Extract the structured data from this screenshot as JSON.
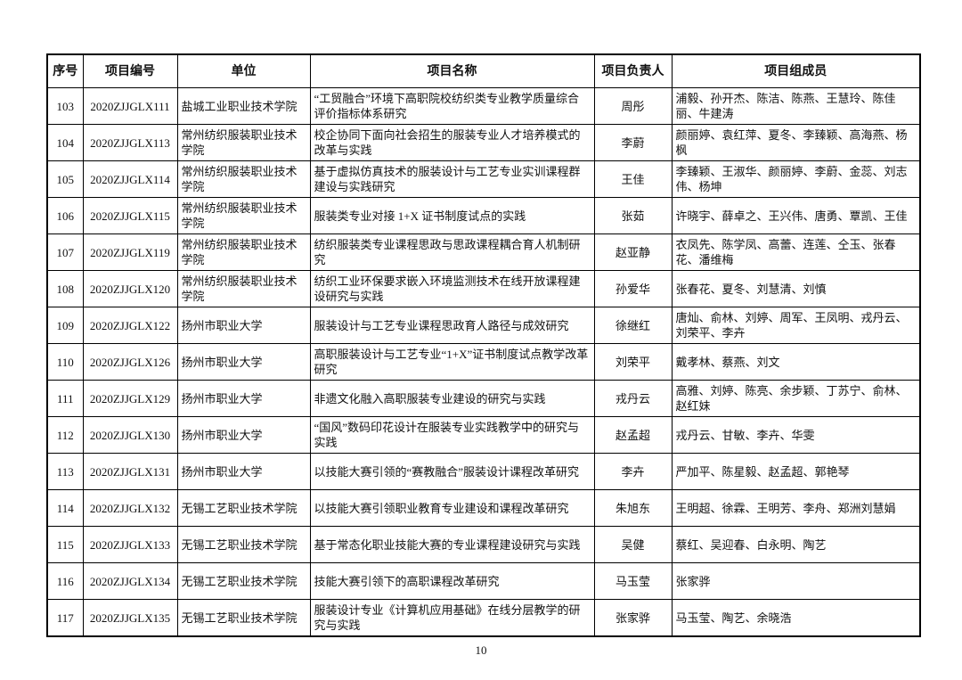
{
  "table": {
    "headers": [
      "序号",
      "项目编号",
      "单位",
      "项目名称",
      "项目负责人",
      "项目组成员"
    ],
    "rows": [
      [
        "103",
        "2020ZJJGLX111",
        "盐城工业职业技术学院",
        "“工贸融合”环境下高职院校纺织类专业教学质量综合评价指标体系研究",
        "周彤",
        "浦毅、孙开杰、陈洁、陈燕、王慧玲、陈佳丽、牛建涛"
      ],
      [
        "104",
        "2020ZJJGLX113",
        "常州纺织服装职业技术学院",
        "校企协同下面向社会招生的服装专业人才培养模式的改革与实践",
        "李蔚",
        "颜丽婷、袁红萍、夏冬、李臻颖、高海燕、杨枫"
      ],
      [
        "105",
        "2020ZJJGLX114",
        "常州纺织服装职业技术学院",
        "基于虚拟仿真技术的服装设计与工艺专业实训课程群建设与实践研究",
        "王佳",
        "李臻颖、王淑华、颜丽婷、李蔚、金蕊、刘志伟、杨坤"
      ],
      [
        "106",
        "2020ZJJGLX115",
        "常州纺织服装职业技术学院",
        "服装类专业对接 1+X 证书制度试点的实践",
        "张茹",
        "许晓宇、薛卓之、王兴伟、唐勇、覃凯、王佳"
      ],
      [
        "107",
        "2020ZJJGLX119",
        "常州纺织服装职业技术学院",
        "纺织服装类专业课程思政与思政课程耦合育人机制研究",
        "赵亚静",
        "衣凤先、陈学凤、高蕾、连莲、仝玉、张春花、潘维梅"
      ],
      [
        "108",
        "2020ZJJGLX120",
        "常州纺织服装职业技术学院",
        "纺织工业环保要求嵌入环境监测技术在线开放课程建设研究与实践",
        "孙爱华",
        "张春花、夏冬、刘慧清、刘慎"
      ],
      [
        "109",
        "2020ZJJGLX122",
        "扬州市职业大学",
        "服装设计与工艺专业课程思政育人路径与成效研究",
        "徐继红",
        "唐灿、俞林、刘婷、周军、王凤明、戎丹云、刘荣平、李卉"
      ],
      [
        "110",
        "2020ZJJGLX126",
        "扬州市职业大学",
        "高职服装设计与工艺专业“1+X”证书制度试点教学改革研究",
        "刘荣平",
        "戴孝林、蔡燕、刘文"
      ],
      [
        "111",
        "2020ZJJGLX129",
        "扬州市职业大学",
        "非遗文化融入高职服装专业建设的研究与实践",
        "戎丹云",
        "高雅、刘婷、陈亮、余步颖、丁苏宁、俞林、赵红妹"
      ],
      [
        "112",
        "2020ZJJGLX130",
        "扬州市职业大学",
        "“国风”数码印花设计在服装专业实践教学中的研究与实践",
        "赵孟超",
        "戎丹云、甘敏、李卉、华雯"
      ],
      [
        "113",
        "2020ZJJGLX131",
        "扬州市职业大学",
        "以技能大赛引领的“赛教融合”服装设计课程改革研究",
        "李卉",
        "严加平、陈星毅、赵孟超、郭艳琴"
      ],
      [
        "114",
        "2020ZJJGLX132",
        "无锡工艺职业技术学院",
        "以技能大赛引领职业教育专业建设和课程改革研究",
        "朱旭东",
        "王明超、徐霖、王明芳、李舟、郑洲刘慧娟"
      ],
      [
        "115",
        "2020ZJJGLX133",
        "无锡工艺职业技术学院",
        "基于常态化职业技能大赛的专业课程建设研究与实践",
        "吴健",
        "蔡红、吴迎春、白永明、陶艺"
      ],
      [
        "116",
        "2020ZJJGLX134",
        "无锡工艺职业技术学院",
        "技能大赛引领下的高职课程改革研究",
        "马玉莹",
        "张家骅"
      ],
      [
        "117",
        "2020ZJJGLX135",
        "无锡工艺职业技术学院",
        "服装设计专业《计算机应用基础》在线分层教学的研究与实践",
        "张家骅",
        "马玉莹、陶艺、余晓浩"
      ]
    ]
  },
  "page_number": "10"
}
